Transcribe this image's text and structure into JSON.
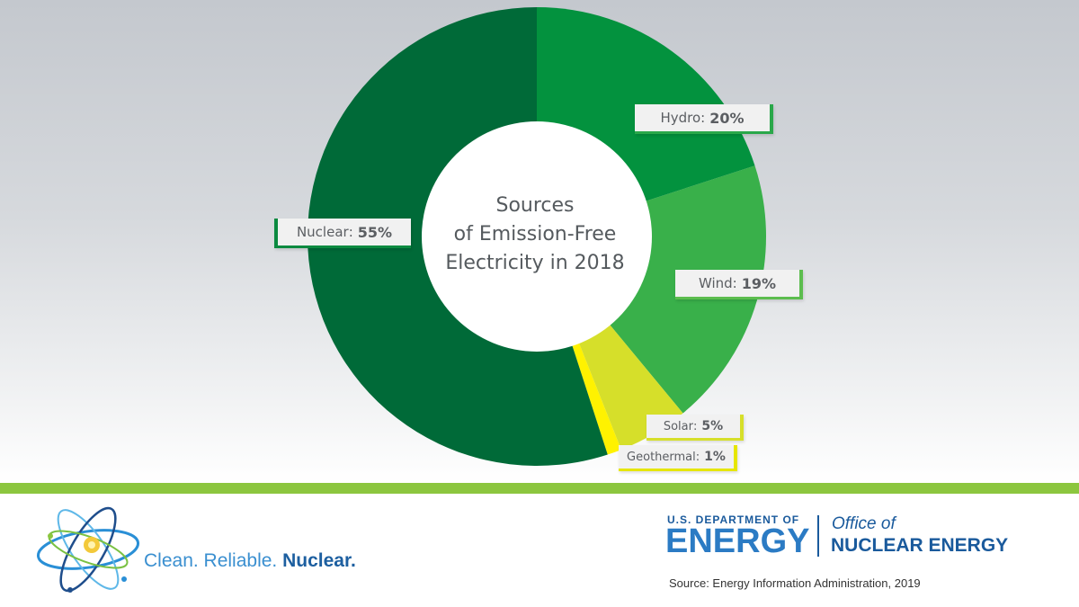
{
  "chart_data": {
    "type": "pie",
    "title_lines": [
      "Sources",
      "of Emission-Free",
      "Electricity in 2018"
    ],
    "slices": [
      {
        "name": "Hydro",
        "value": 20,
        "value_label": "20%",
        "color": "#03923e",
        "tab_color": "#2aa84a"
      },
      {
        "name": "Wind",
        "value": 19,
        "value_label": "19%",
        "color": "#39b04a",
        "tab_color": "#5cbd4e"
      },
      {
        "name": "Solar",
        "value": 5,
        "value_label": "5%",
        "color": "#d6df2a",
        "tab_color": "#d6df2a"
      },
      {
        "name": "Geothermal",
        "value": 1,
        "value_label": "1%",
        "color": "#fff200",
        "tab_color": "#e6e600"
      },
      {
        "name": "Nuclear",
        "value": 55,
        "value_label": "55%",
        "color": "#006a38",
        "tab_color": "#0b8a40"
      }
    ]
  },
  "footer": {
    "tagline_clean": "Clean.",
    "tagline_reliable": "Reliable.",
    "tagline_nuclear": "Nuclear.",
    "doe_line1": "U.S. DEPARTMENT OF",
    "doe_line2": "ENERGY",
    "office_of": "Office of",
    "office_name": "NUCLEAR ENERGY",
    "source": "Source: Energy Information Administration, 2019"
  },
  "colors": {
    "accent_bar": "#8cc63f",
    "doe_blue": "#1a5a9c"
  }
}
